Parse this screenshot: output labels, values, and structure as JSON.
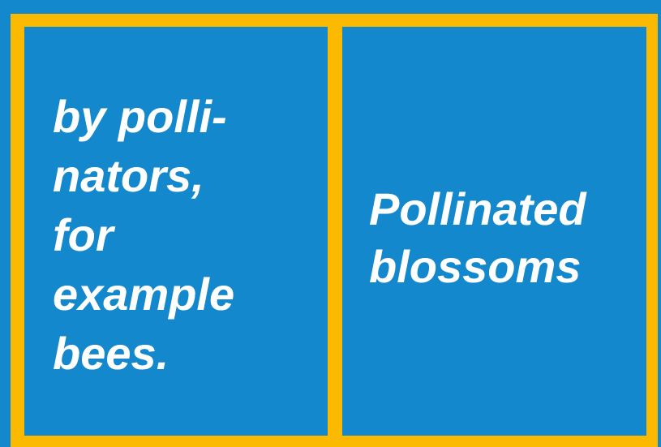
{
  "cells": [
    {
      "lines": [
        "by polli-",
        "nators,",
        "for",
        "example",
        "bees."
      ]
    },
    {
      "lines": [
        "Pollinated",
        "blossoms"
      ]
    }
  ]
}
